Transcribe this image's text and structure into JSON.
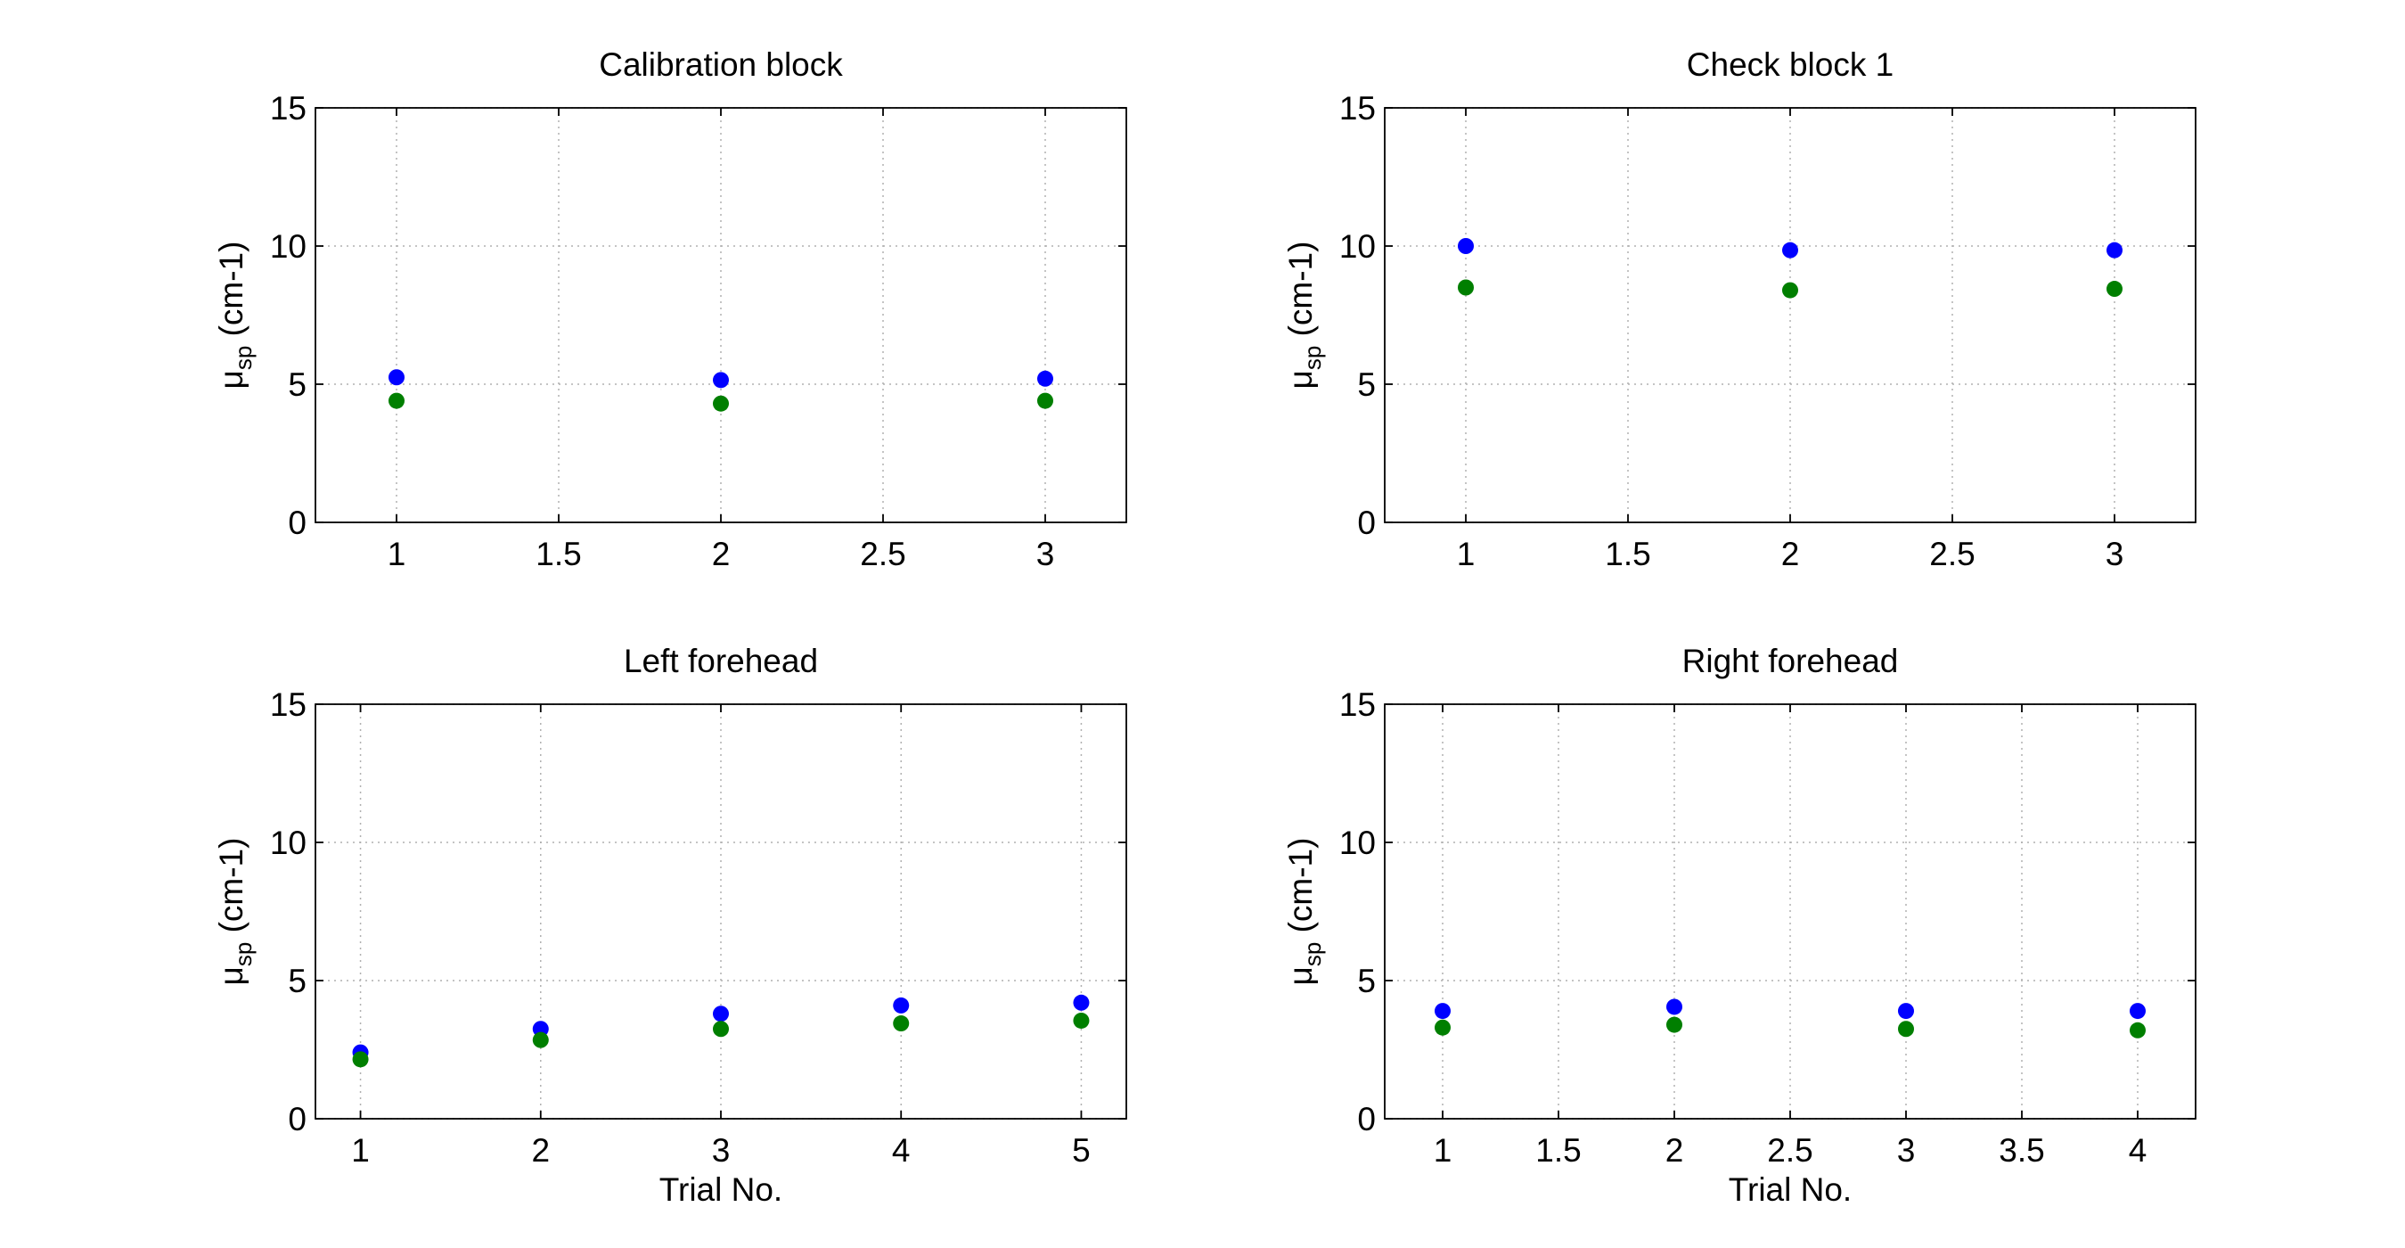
{
  "chart_data": [
    {
      "type": "scatter",
      "title": "Calibration block",
      "xlabel": "",
      "ylabel": {
        "symbol": "μ",
        "subscript": "sp",
        "unit": " (cm-1)"
      },
      "xlim": [
        0.75,
        3.25
      ],
      "ylim": [
        0,
        15
      ],
      "xticks": [
        1,
        1.5,
        2,
        2.5,
        3
      ],
      "xtick_labels": [
        "1",
        "1.5",
        "2",
        "2.5",
        "3"
      ],
      "yticks": [
        0,
        5,
        10,
        15
      ],
      "ytick_labels": [
        "0",
        "5",
        "10",
        "15"
      ],
      "grid": true,
      "series": [
        {
          "color": "#0000ff",
          "points": [
            [
              1,
              5.25
            ],
            [
              2,
              5.15
            ],
            [
              3,
              5.2
            ]
          ]
        },
        {
          "color": "#007f00",
          "points": [
            [
              1,
              4.4
            ],
            [
              2,
              4.3
            ],
            [
              3,
              4.4
            ]
          ]
        }
      ]
    },
    {
      "type": "scatter",
      "title": "Check block 1",
      "xlabel": "",
      "ylabel": {
        "symbol": "μ",
        "subscript": "sp",
        "unit": " (cm-1)"
      },
      "xlim": [
        0.75,
        3.25
      ],
      "ylim": [
        0,
        15
      ],
      "xticks": [
        1,
        1.5,
        2,
        2.5,
        3
      ],
      "xtick_labels": [
        "1",
        "1.5",
        "2",
        "2.5",
        "3"
      ],
      "yticks": [
        0,
        5,
        10,
        15
      ],
      "ytick_labels": [
        "0",
        "5",
        "10",
        "15"
      ],
      "grid": true,
      "series": [
        {
          "color": "#0000ff",
          "points": [
            [
              1,
              10.0
            ],
            [
              2,
              9.85
            ],
            [
              3,
              9.85
            ]
          ]
        },
        {
          "color": "#007f00",
          "points": [
            [
              1,
              8.5
            ],
            [
              2,
              8.4
            ],
            [
              3,
              8.45
            ]
          ]
        }
      ]
    },
    {
      "type": "scatter",
      "title": "Left forehead",
      "xlabel": "Trial No.",
      "ylabel": {
        "symbol": "μ",
        "subscript": "sp",
        "unit": " (cm-1)"
      },
      "xlim": [
        0.75,
        5.25
      ],
      "ylim": [
        0,
        15
      ],
      "xticks": [
        1,
        2,
        3,
        4,
        5
      ],
      "xtick_labels": [
        "1",
        "2",
        "3",
        "4",
        "5"
      ],
      "yticks": [
        0,
        5,
        10,
        15
      ],
      "ytick_labels": [
        "0",
        "5",
        "10",
        "15"
      ],
      "grid": true,
      "series": [
        {
          "color": "#0000ff",
          "points": [
            [
              1,
              2.4
            ],
            [
              2,
              3.25
            ],
            [
              3,
              3.8
            ],
            [
              4,
              4.1
            ],
            [
              5,
              4.2
            ]
          ]
        },
        {
          "color": "#007f00",
          "points": [
            [
              1,
              2.15
            ],
            [
              2,
              2.85
            ],
            [
              3,
              3.25
            ],
            [
              4,
              3.45
            ],
            [
              5,
              3.55
            ]
          ]
        }
      ]
    },
    {
      "type": "scatter",
      "title": "Right forehead",
      "xlabel": "Trial No.",
      "ylabel": {
        "symbol": "μ",
        "subscript": "sp",
        "unit": " (cm-1)"
      },
      "xlim": [
        0.75,
        4.25
      ],
      "ylim": [
        0,
        15
      ],
      "xticks": [
        1,
        1.5,
        2,
        2.5,
        3,
        3.5,
        4
      ],
      "xtick_labels": [
        "1",
        "1.5",
        "2",
        "2.5",
        "3",
        "3.5",
        "4"
      ],
      "yticks": [
        0,
        5,
        10,
        15
      ],
      "ytick_labels": [
        "0",
        "5",
        "10",
        "15"
      ],
      "grid": true,
      "series": [
        {
          "color": "#0000ff",
          "points": [
            [
              1,
              3.9
            ],
            [
              2,
              4.05
            ],
            [
              3,
              3.9
            ],
            [
              4,
              3.9
            ]
          ]
        },
        {
          "color": "#007f00",
          "points": [
            [
              1,
              3.3
            ],
            [
              2,
              3.4
            ],
            [
              3,
              3.25
            ],
            [
              4,
              3.2
            ]
          ]
        }
      ]
    }
  ]
}
